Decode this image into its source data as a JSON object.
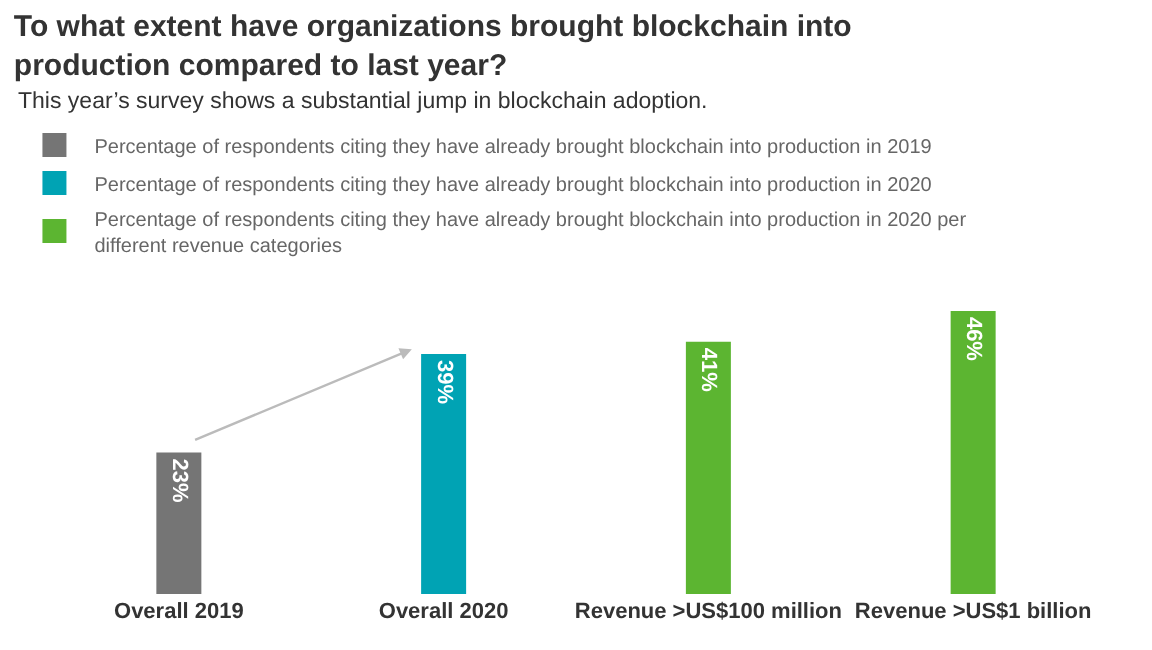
{
  "chart_data": {
    "type": "bar",
    "title": "To what extent have organizations brought blockchain into production compared to last year?",
    "subtitle": "This year’s survey shows a substantial jump in blockchain adoption.",
    "categories": [
      "Overall 2019",
      "Overall 2020",
      "Revenue >US$100 million",
      "Revenue >US$1 billion"
    ],
    "series": [
      {
        "name": "Percentage of respondents citing they have already brought blockchain into production in 2019",
        "color": "#757575",
        "values": [
          23,
          null,
          null,
          null
        ],
        "value_labels": [
          "23%",
          null,
          null,
          null
        ]
      },
      {
        "name": "Percentage of respondents citing they have already brought blockchain into production in 2020",
        "color": "#00a3b4",
        "values": [
          null,
          39,
          null,
          null
        ],
        "value_labels": [
          null,
          "39%",
          null,
          null
        ]
      },
      {
        "name": "Percentage of respondents citing they have already brought blockchain into production in 2020 per different revenue categories",
        "color": "#5cb531",
        "values": [
          null,
          null,
          41,
          46
        ],
        "value_labels": [
          null,
          null,
          "41%",
          "46%"
        ]
      }
    ],
    "legend": "top left"
  }
}
